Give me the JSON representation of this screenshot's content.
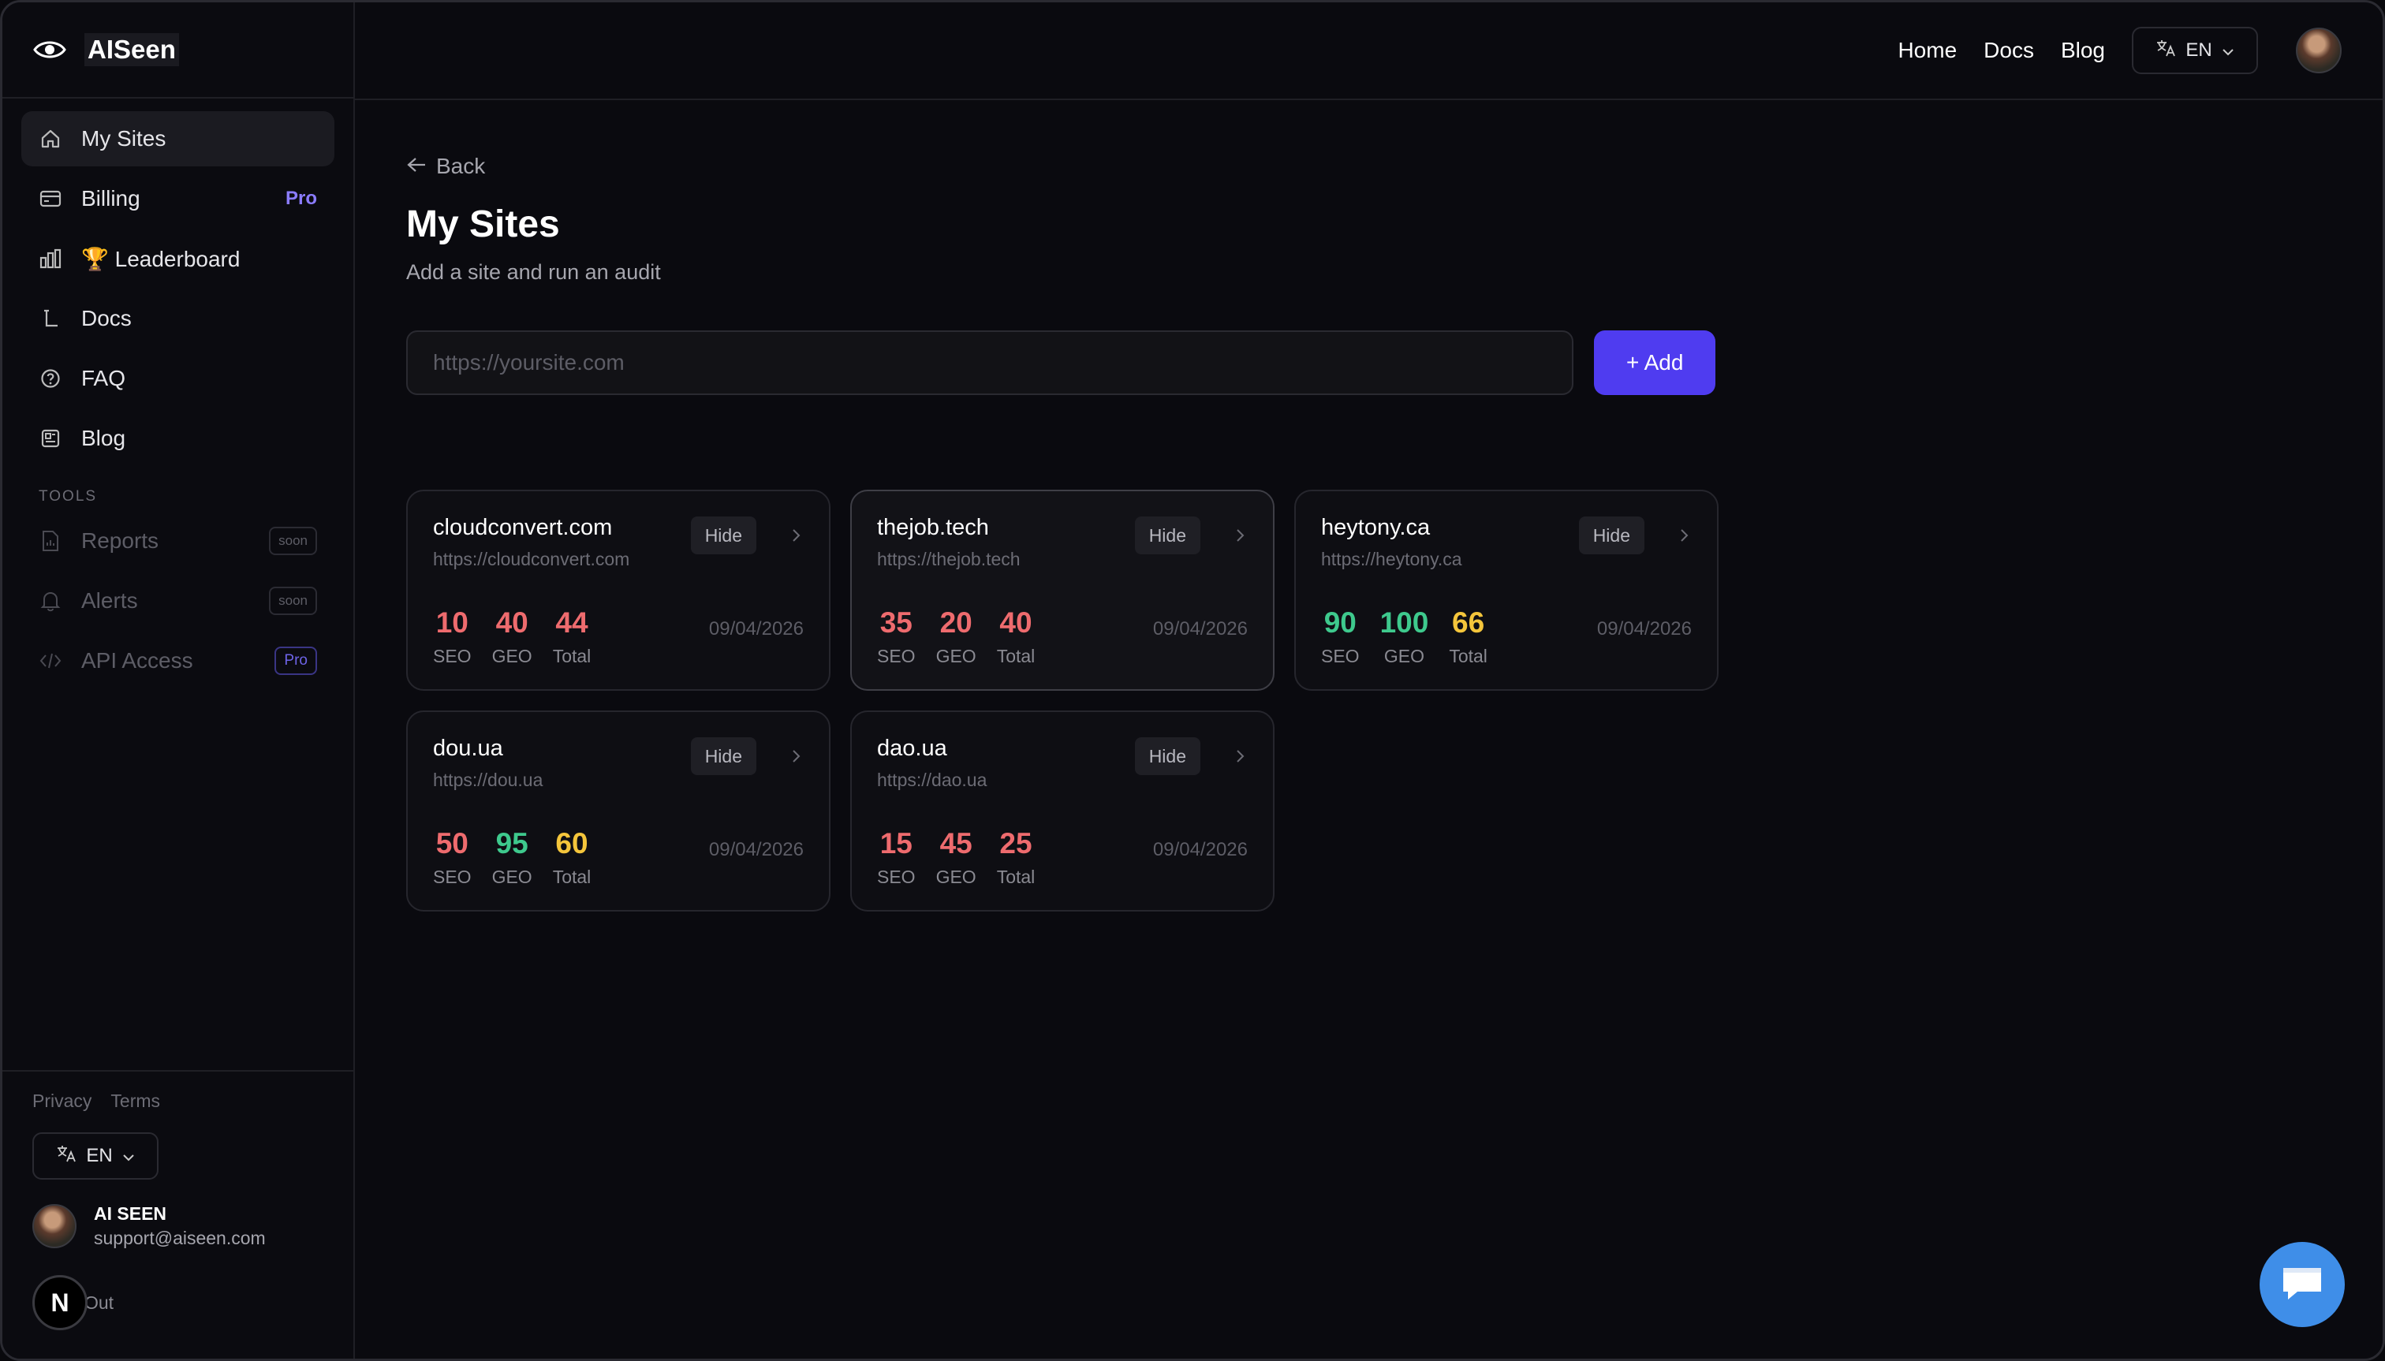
{
  "app": {
    "name": "AISeen"
  },
  "sidebar": {
    "items": [
      {
        "label": "My Sites",
        "icon": "home-icon"
      },
      {
        "label": "Billing",
        "icon": "billing-icon",
        "badge": "Pro"
      },
      {
        "label": "🏆 Leaderboard",
        "icon": "chart-icon"
      },
      {
        "label": "Docs",
        "icon": "docs-icon"
      },
      {
        "label": "FAQ",
        "icon": "help-icon"
      },
      {
        "label": "Blog",
        "icon": "blog-icon"
      }
    ],
    "tools_title": "TOOLS",
    "tools": [
      {
        "label": "Reports",
        "badge": "soon"
      },
      {
        "label": "Alerts",
        "badge": "soon"
      },
      {
        "label": "API Access",
        "badge": "Pro"
      }
    ],
    "footer": {
      "privacy": "Privacy",
      "terms": "Terms",
      "lang": "EN",
      "user_name": "AI SEEN",
      "user_email": "support@aiseen.com",
      "n_badge": "N",
      "logout": "Out"
    }
  },
  "topbar": {
    "links": [
      "Home",
      "Docs",
      "Blog"
    ],
    "lang": "EN"
  },
  "page": {
    "back": "Back",
    "title": "My Sites",
    "subtitle": "Add a site and run an audit",
    "input_placeholder": "https://yoursite.com",
    "add_label": "+ Add"
  },
  "labels": {
    "hide": "Hide",
    "seo": "SEO",
    "geo": "GEO",
    "total": "Total"
  },
  "sites": [
    {
      "name": "cloudconvert.com",
      "url": "https://cloudconvert.com",
      "seo": "10",
      "geo": "40",
      "total": "44",
      "date": "09/04/2026"
    },
    {
      "name": "thejob.tech",
      "url": "https://thejob.tech",
      "seo": "35",
      "geo": "20",
      "total": "40",
      "date": "09/04/2026"
    },
    {
      "name": "heytony.ca",
      "url": "https://heytony.ca",
      "seo": "90",
      "geo": "100",
      "total": "66",
      "date": "09/04/2026"
    },
    {
      "name": "dou.ua",
      "url": "https://dou.ua",
      "seo": "50",
      "geo": "95",
      "total": "60",
      "date": "09/04/2026"
    },
    {
      "name": "dao.ua",
      "url": "https://dao.ua",
      "seo": "15",
      "geo": "45",
      "total": "25",
      "date": "09/04/2026"
    }
  ],
  "colors": {
    "red": "#ee6b6e",
    "green": "#3ec98d",
    "yellow": "#f4c53b",
    "accent": "#4f3cf0",
    "pro": "#8b7cff"
  }
}
